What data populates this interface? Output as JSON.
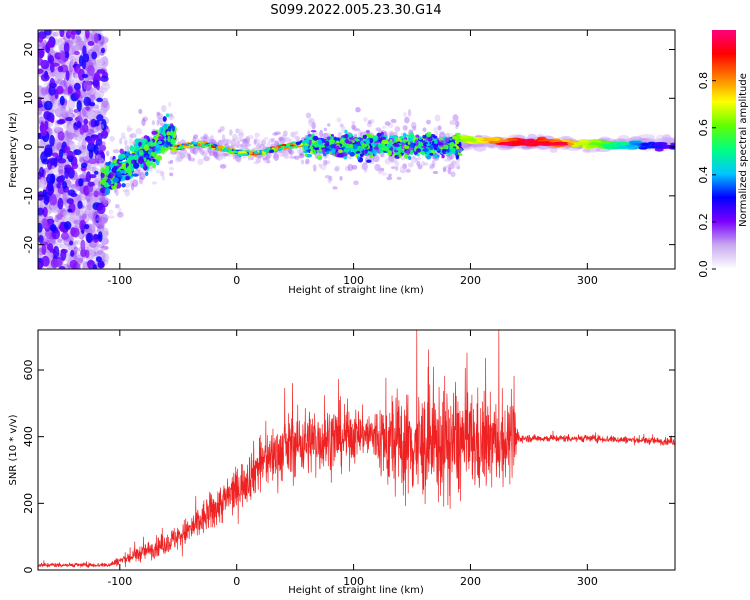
{
  "title": "S099.2022.005.23.30.G14",
  "chart_data": [
    {
      "type": "heatmap",
      "xlabel": "Height of straight line (km)",
      "ylabel": "Frequency (Hz)",
      "xlim": [
        -170,
        375
      ],
      "ylim": [
        -25,
        24
      ],
      "xticks": [
        -100,
        0,
        100,
        200,
        300
      ],
      "yticks": [
        -20,
        -10,
        0,
        10,
        20
      ],
      "colorbar": {
        "label": "Normalized spectral amplitude",
        "range": [
          0,
          1
        ],
        "ticks": [
          "0.0",
          "0.2",
          "0.4",
          "0.6",
          "0.8"
        ],
        "colors": [
          "#ffffff",
          "#c8a8f0",
          "#7a00ff",
          "#0000ff",
          "#00c8ff",
          "#00ff80",
          "#60ff00",
          "#ffff00",
          "#ff8000",
          "#ff0000",
          "#ff0080"
        ]
      },
      "features": [
        {
          "region": "noise",
          "x": [
            -170,
            -115
          ],
          "freq_spread": [
            -25,
            24
          ]
        },
        {
          "region": "rising",
          "x": [
            -115,
            -55
          ],
          "freq": [
            -8,
            3
          ]
        },
        {
          "region": "narrow_band",
          "x": [
            -55,
            60
          ],
          "freq": [
            -1,
            1
          ]
        },
        {
          "region": "turbulent",
          "x": [
            60,
            190
          ],
          "freq": [
            -3,
            3
          ]
        },
        {
          "region": "stable",
          "x": [
            190,
            375
          ],
          "freq": [
            1.5,
            0
          ],
          "peak_x": 250
        }
      ],
      "grid": false
    },
    {
      "type": "line",
      "xlabel": "Height of straight line (km)",
      "ylabel": "SNR (10 * v/v)",
      "xlim": [
        -170,
        375
      ],
      "ylim": [
        0,
        720
      ],
      "xticks": [
        -100,
        0,
        100,
        200,
        300
      ],
      "yticks": [
        0,
        200,
        400,
        600
      ],
      "color": "#ee2222",
      "envelope": [
        {
          "x": -170,
          "mean": 15,
          "spread": 12
        },
        {
          "x": -110,
          "mean": 15,
          "spread": 12
        },
        {
          "x": -90,
          "mean": 40,
          "spread": 40
        },
        {
          "x": -60,
          "mean": 80,
          "spread": 60
        },
        {
          "x": -40,
          "mean": 120,
          "spread": 80
        },
        {
          "x": -20,
          "mean": 180,
          "spread": 110
        },
        {
          "x": 0,
          "mean": 240,
          "spread": 120
        },
        {
          "x": 20,
          "mean": 320,
          "spread": 150
        },
        {
          "x": 50,
          "mean": 380,
          "spread": 180
        },
        {
          "x": 90,
          "mean": 400,
          "spread": 180
        },
        {
          "x": 110,
          "mean": 410,
          "spread": 120
        },
        {
          "x": 130,
          "mean": 380,
          "spread": 260
        },
        {
          "x": 160,
          "mean": 370,
          "spread": 300
        },
        {
          "x": 180,
          "mean": 380,
          "spread": 320
        },
        {
          "x": 210,
          "mean": 380,
          "spread": 260
        },
        {
          "x": 238,
          "mean": 390,
          "spread": 200
        },
        {
          "x": 242,
          "mean": 395,
          "spread": 20
        },
        {
          "x": 300,
          "mean": 395,
          "spread": 20
        },
        {
          "x": 375,
          "mean": 385,
          "spread": 20
        }
      ],
      "grid": false
    }
  ]
}
